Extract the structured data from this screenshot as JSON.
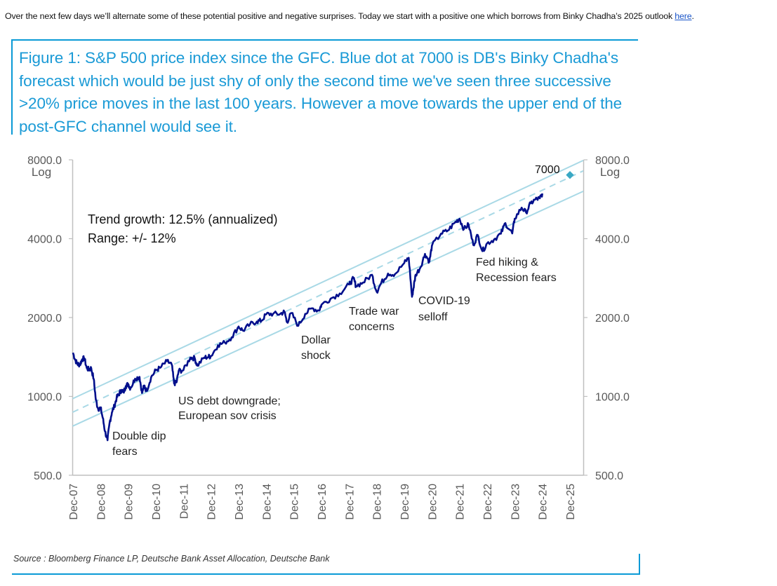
{
  "intro": {
    "text": "Over the next few days we’ll alternate some of these potential positive and negative surprises. Today we start with a positive one which borrows from Binky Chadha’s 2025 outlook ",
    "link_label": "here",
    "trailing": "."
  },
  "figure": {
    "title": "Figure 1: S&P 500 price index since the GFC. Blue dot at 7000 is DB's Binky Chadha's forecast which would be just shy of only the second time we've seen three successive >20% price moves in the last 100 years. However a move towards the upper end of the post-GFC channel would see it.",
    "source": "Source : Bloomberg Finance LP, Deutsche Bank Asset Allocation, Deutsche Bank"
  },
  "colors": {
    "accent": "#0a9ad6",
    "series": "#000f8c",
    "channel": "#a9d9e6",
    "forecast": "#3aa8c4",
    "axis": "#bfbfbf",
    "tick_text": "#595959"
  },
  "chart_data": {
    "type": "line",
    "title": "S&P 500 price index since the GFC",
    "xlabel": "",
    "ylabel": "",
    "yscale": "log",
    "ylim": [
      500,
      8000
    ],
    "y_ticks": [
      "8000.0",
      "4000.0",
      "2000.0",
      "1000.0",
      "500.0"
    ],
    "y_tick_values": [
      8000,
      4000,
      2000,
      1000,
      500
    ],
    "y_axis_note": "Log",
    "x_ticks": [
      "Dec-07",
      "Dec-08",
      "Dec-09",
      "Dec-10",
      "Dec-11",
      "Dec-12",
      "Dec-13",
      "Dec-14",
      "Dec-15",
      "Dec-16",
      "Dec-17",
      "Dec-18",
      "Dec-19",
      "Dec-20",
      "Dec-21",
      "Dec-22",
      "Dec-23",
      "Dec-24",
      "Dec-25"
    ],
    "xlim_years": [
      2007.92,
      2025.92
    ],
    "grid": false,
    "legend": "none",
    "series": [
      {
        "name": "S&P 500",
        "x": [
          2007.92,
          2008.0,
          2008.08,
          2008.17,
          2008.25,
          2008.33,
          2008.42,
          2008.5,
          2008.58,
          2008.67,
          2008.75,
          2008.83,
          2008.92,
          2009.0,
          2009.08,
          2009.17,
          2009.25,
          2009.33,
          2009.42,
          2009.5,
          2009.58,
          2009.67,
          2009.75,
          2009.83,
          2009.92,
          2010.0,
          2010.17,
          2010.33,
          2010.42,
          2010.5,
          2010.58,
          2010.75,
          2010.92,
          2011.08,
          2011.33,
          2011.5,
          2011.58,
          2011.67,
          2011.75,
          2011.92,
          2012.17,
          2012.33,
          2012.42,
          2012.67,
          2012.83,
          2012.92,
          2013.17,
          2013.42,
          2013.67,
          2013.92,
          2014.08,
          2014.33,
          2014.58,
          2014.75,
          2014.92,
          2015.17,
          2015.42,
          2015.58,
          2015.67,
          2015.83,
          2016.08,
          2016.33,
          2016.58,
          2016.83,
          2016.92,
          2017.25,
          2017.58,
          2017.92,
          2018.08,
          2018.17,
          2018.42,
          2018.75,
          2018.92,
          2019.08,
          2019.33,
          2019.58,
          2019.92,
          2020.08,
          2020.2,
          2020.25,
          2020.33,
          2020.5,
          2020.67,
          2020.83,
          2020.92,
          2021.25,
          2021.5,
          2021.75,
          2021.92,
          2022.08,
          2022.25,
          2022.42,
          2022.58,
          2022.75,
          2022.92,
          2023.17,
          2023.42,
          2023.58,
          2023.83,
          2023.92,
          2024.17,
          2024.33,
          2024.5,
          2024.67,
          2024.83,
          2024.92
        ],
        "values": [
          1468,
          1378,
          1330,
          1322,
          1385,
          1400,
          1280,
          1267,
          1282,
          1166,
          968,
          896,
          903,
          826,
          735,
          680,
          798,
          870,
          919,
          987,
          1020,
          1057,
          1036,
          1095,
          1115,
          1074,
          1169,
          1187,
          1030,
          1101,
          1049,
          1183,
          1258,
          1286,
          1363,
          1320,
          1120,
          1131,
          1253,
          1258,
          1408,
          1398,
          1310,
          1406,
          1416,
          1426,
          1569,
          1606,
          1682,
          1848,
          1782,
          1884,
          1931,
          1946,
          2059,
          2068,
          2063,
          2104,
          1920,
          2080,
          1860,
          2065,
          2170,
          2126,
          2239,
          2362,
          2470,
          2673,
          2823,
          2640,
          2718,
          2913,
          2507,
          2704,
          2945,
          2926,
          3231,
          3380,
          2400,
          2584,
          2912,
          3100,
          3500,
          3270,
          3756,
          4181,
          4297,
          4605,
          4766,
          4350,
          4530,
          3785,
          4130,
          3585,
          3840,
          3970,
          4180,
          4590,
          4190,
          4770,
          5254,
          5035,
          5460,
          5650,
          5705,
          5950
        ]
      },
      {
        "name": "Trend channel (mid)",
        "style": "dashed",
        "x": [
          2007.92,
          2026.45
        ],
        "values": [
          870,
          7300
        ]
      },
      {
        "name": "Trend channel (upper)",
        "x": [
          2007.92,
          2026.45
        ],
        "values": [
          980,
          8000
        ]
      },
      {
        "name": "Trend channel (lower)",
        "x": [
          2007.92,
          2026.45
        ],
        "values": [
          770,
          6100
        ]
      },
      {
        "name": "Forecast",
        "type": "scatter",
        "marker": "diamond",
        "x": [
          2025.92
        ],
        "values": [
          7000
        ]
      }
    ],
    "annotations": {
      "trend": "Trend growth: 12.5% (annualized)",
      "range": "Range: +/- 12%",
      "forecast_label": "7000",
      "events": [
        {
          "lines": [
            "Double dip",
            "fears"
          ]
        },
        {
          "lines": [
            "US debt downgrade;",
            "European sov crisis"
          ]
        },
        {
          "lines": [
            "Dollar",
            "shock"
          ]
        },
        {
          "lines": [
            "Trade war",
            "concerns"
          ]
        },
        {
          "lines": [
            "COVID-19",
            "selloff"
          ]
        },
        {
          "lines": [
            "Fed hiking &",
            "Recession fears"
          ]
        }
      ]
    }
  }
}
